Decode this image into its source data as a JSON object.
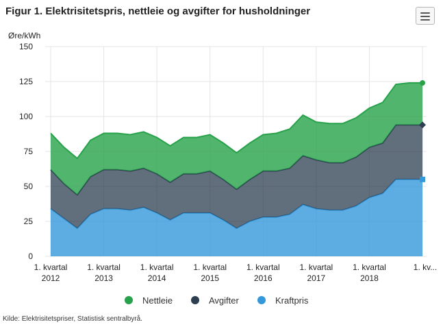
{
  "title": "Figur 1. Elektrisitetspris, nettleie og avgifter for husholdninger",
  "source": "Kilde: Elektrisitetspriser, Statistisk sentralbyrå.",
  "menu_icon": "hamburger-menu-icon",
  "colors": {
    "Nettleie": "#27a24a",
    "Avgifter": "#2c3e50",
    "Kraftpris": "#3498db",
    "grid": "#e4e4e4",
    "axis_text": "#222222"
  },
  "chart_data": {
    "type": "area",
    "stacked": true,
    "ylabel": "Øre/kWh",
    "ylim": [
      0,
      150
    ],
    "yticks": [
      0,
      25,
      50,
      75,
      100,
      125,
      150
    ],
    "xlabels": [
      {
        "index": 0,
        "lines": [
          "1. kvartal",
          "2012"
        ]
      },
      {
        "index": 4,
        "lines": [
          "1. kvartal",
          "2013"
        ]
      },
      {
        "index": 8,
        "lines": [
          "1. kvartal",
          "2014"
        ]
      },
      {
        "index": 12,
        "lines": [
          "1. kvartal",
          "2015"
        ]
      },
      {
        "index": 16,
        "lines": [
          "1. kvartal",
          "2016"
        ]
      },
      {
        "index": 20,
        "lines": [
          "1. kvartal",
          "2017"
        ]
      },
      {
        "index": 24,
        "lines": [
          "1. kvartal",
          "2018"
        ]
      },
      {
        "index": 28,
        "lines": [
          "1. kv..."
        ]
      }
    ],
    "n_points": 29,
    "series": [
      {
        "name": "Kraftpris",
        "values": [
          34,
          27,
          20,
          30,
          34,
          34,
          33,
          35,
          31,
          26,
          31,
          31,
          31,
          26,
          20,
          25,
          28,
          28,
          30,
          37,
          34,
          33,
          33,
          36,
          42,
          45,
          55,
          55,
          55
        ]
      },
      {
        "name": "Avgifter",
        "values": [
          28,
          25,
          24,
          27,
          28,
          28,
          28,
          28,
          28,
          27,
          28,
          28,
          30,
          29,
          28,
          30,
          33,
          33,
          33,
          35,
          35,
          34,
          34,
          35,
          36,
          36,
          39,
          39,
          39
        ]
      },
      {
        "name": "Nettleie",
        "values": [
          26,
          26,
          26,
          26,
          26,
          26,
          26,
          26,
          26,
          26,
          26,
          26,
          26,
          26,
          26,
          26,
          26,
          27,
          28,
          29,
          27,
          28,
          28,
          28,
          28,
          29,
          29,
          30,
          30
        ]
      }
    ]
  },
  "legend": [
    {
      "name": "Nettleie",
      "label": "Nettleie"
    },
    {
      "name": "Avgifter",
      "label": "Avgifter"
    },
    {
      "name": "Kraftpris",
      "label": "Kraftpris"
    }
  ]
}
